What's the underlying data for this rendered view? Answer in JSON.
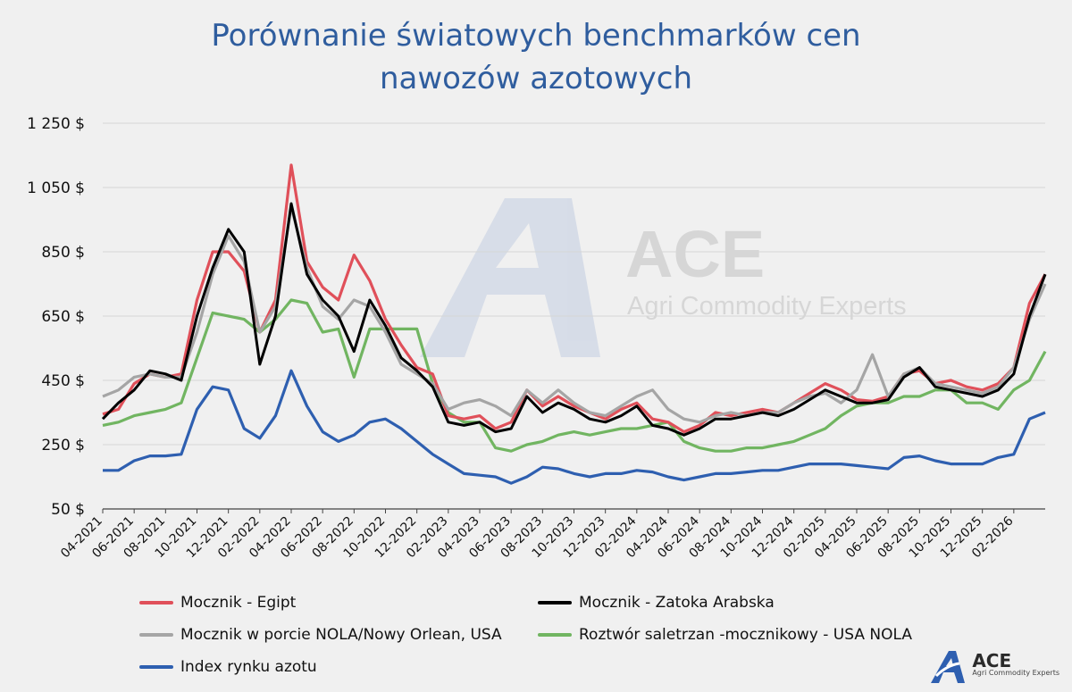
{
  "title_line1": "Porównanie światowych benchmarków cen",
  "title_line2": "nawozów azotowych",
  "watermark": {
    "name": "ACE",
    "subtitle": "Agri Commodity Experts"
  },
  "brand": {
    "name": "ACE",
    "subtitle": "Agri Commodity Experts"
  },
  "chart_data": {
    "type": "line",
    "ylim": [
      50,
      1250
    ],
    "y_ticks": [
      50,
      250,
      450,
      650,
      850,
      1050,
      1250
    ],
    "y_tick_labels": [
      "50  $",
      "250  $",
      "450  $",
      "650  $",
      "850  $",
      "1 050  $",
      "1 250  $"
    ],
    "x_tick_labels": [
      "04-2021",
      "06-2021",
      "08-2021",
      "10-2021",
      "12-2021",
      "02-2022",
      "04-2022",
      "06-2022",
      "08-2022",
      "10-2022",
      "12-2022",
      "02-2023",
      "04-2023",
      "06-2023",
      "08-2023",
      "10-2023",
      "12-2023",
      "02-2024",
      "04-2024",
      "06-2024",
      "08-2024",
      "10-2024",
      "12-2024",
      "02-2025",
      "04-2025",
      "06-2025",
      "08-2025",
      "10-2025",
      "12-2025",
      "02-2026"
    ],
    "x": [
      "2021-04",
      "2021-05",
      "2021-06",
      "2021-07",
      "2021-08",
      "2021-09",
      "2021-10",
      "2021-11",
      "2021-12",
      "2022-01",
      "2022-02",
      "2022-03",
      "2022-04",
      "2022-05",
      "2022-06",
      "2022-07",
      "2022-08",
      "2022-09",
      "2022-10",
      "2022-11",
      "2022-12",
      "2023-01",
      "2023-02",
      "2023-03",
      "2023-04",
      "2023-05",
      "2023-06",
      "2023-07",
      "2023-08",
      "2023-09",
      "2023-10",
      "2023-11",
      "2023-12",
      "2024-01",
      "2024-02",
      "2024-03",
      "2024-04",
      "2024-05",
      "2024-06",
      "2024-07",
      "2024-08",
      "2024-09",
      "2024-10",
      "2024-11",
      "2024-12",
      "2025-01",
      "2025-02",
      "2025-03",
      "2025-04",
      "2025-05",
      "2025-06",
      "2025-07",
      "2025-08",
      "2025-09",
      "2025-10",
      "2025-11",
      "2025-12",
      "2026-01",
      "2026-02",
      "2026-03",
      "2026-04"
    ],
    "series": [
      {
        "name": "Mocznik - Egipt",
        "color": "#e0505a",
        "values": [
          345,
          360,
          440,
          470,
          460,
          470,
          700,
          850,
          850,
          790,
          600,
          700,
          1120,
          820,
          740,
          700,
          840,
          760,
          640,
          560,
          490,
          470,
          340,
          330,
          340,
          300,
          320,
          420,
          370,
          400,
          370,
          350,
          330,
          360,
          380,
          330,
          320,
          290,
          310,
          350,
          340,
          350,
          360,
          350,
          380,
          410,
          440,
          420,
          390,
          385,
          400,
          470,
          480,
          440,
          450,
          430,
          420,
          440,
          490,
          690,
          780
        ]
      },
      {
        "name": "Mocznik - Zatoka Arabska",
        "color": "#000000",
        "values": [
          330,
          380,
          420,
          480,
          470,
          450,
          650,
          800,
          920,
          850,
          500,
          650,
          1000,
          780,
          700,
          650,
          540,
          700,
          620,
          520,
          480,
          430,
          320,
          310,
          320,
          290,
          300,
          400,
          350,
          380,
          360,
          330,
          320,
          340,
          370,
          310,
          300,
          280,
          300,
          330,
          330,
          340,
          350,
          340,
          360,
          390,
          420,
          400,
          380,
          380,
          390,
          460,
          490,
          430,
          420,
          410,
          400,
          420,
          470,
          650,
          780
        ]
      },
      {
        "name": "Mocznik w porcie NOLA/Nowy Orlean, USA",
        "color": "#a5a5a5",
        "values": [
          400,
          420,
          460,
          470,
          460,
          460,
          600,
          780,
          900,
          820,
          600,
          680,
          990,
          800,
          680,
          640,
          700,
          680,
          600,
          500,
          470,
          440,
          360,
          380,
          390,
          370,
          340,
          420,
          380,
          420,
          380,
          350,
          340,
          370,
          400,
          420,
          360,
          330,
          320,
          340,
          350,
          340,
          350,
          350,
          380,
          400,
          410,
          380,
          420,
          530,
          400,
          470,
          490,
          440,
          430,
          420,
          410,
          430,
          490,
          640,
          750
        ]
      },
      {
        "name": "Roztwór saletrzan -mocznikowy - USA NOLA",
        "color": "#71b561",
        "values": [
          310,
          320,
          340,
          350,
          360,
          380,
          520,
          660,
          650,
          640,
          600,
          640,
          700,
          690,
          600,
          610,
          460,
          610,
          610,
          610,
          610,
          440,
          350,
          320,
          320,
          240,
          230,
          250,
          260,
          280,
          290,
          280,
          290,
          300,
          300,
          310,
          320,
          260,
          240,
          230,
          230,
          240,
          240,
          250,
          260,
          280,
          300,
          340,
          370,
          380,
          380,
          400,
          400,
          420,
          420,
          380,
          380,
          360,
          420,
          450,
          540
        ]
      },
      {
        "name": "Index rynku azotu",
        "color": "#2e5fb0",
        "values": [
          170,
          170,
          200,
          215,
          215,
          220,
          360,
          430,
          420,
          300,
          270,
          340,
          480,
          370,
          290,
          260,
          280,
          320,
          330,
          300,
          260,
          220,
          190,
          160,
          155,
          150,
          130,
          150,
          180,
          175,
          160,
          150,
          160,
          160,
          170,
          165,
          150,
          140,
          150,
          160,
          160,
          165,
          170,
          170,
          180,
          190,
          190,
          190,
          185,
          180,
          175,
          210,
          215,
          200,
          190,
          190,
          190,
          210,
          220,
          330,
          350
        ]
      }
    ]
  }
}
